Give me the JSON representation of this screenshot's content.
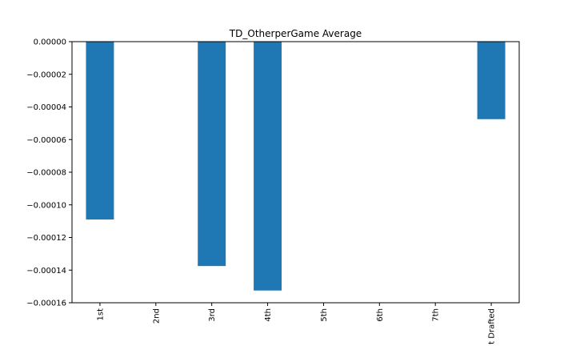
{
  "chart_data": {
    "type": "bar",
    "title": "TD_OtherperGame Average",
    "xlabel": "",
    "ylabel": "",
    "categories": [
      "1st",
      "2nd",
      "3rd",
      "4th",
      "5th",
      "6th",
      "7th",
      "Not Drafted"
    ],
    "visible_category_text": [
      "1st",
      "2nd",
      "3rd",
      "4th",
      "5th",
      "6th",
      "7th",
      "t Drafted"
    ],
    "values": [
      -0.000109,
      0,
      -0.0001375,
      -0.0001525,
      0,
      0,
      0,
      -4.75e-05
    ],
    "ylim": [
      -0.00016,
      0
    ],
    "yticks": [
      0,
      -2e-05,
      -4e-05,
      -6e-05,
      -8e-05,
      -0.0001,
      -0.00012,
      -0.00014,
      -0.00016
    ],
    "ytick_labels": [
      "0.00000",
      "−0.00002",
      "−0.00004",
      "−0.00006",
      "−0.00008",
      "−0.00010",
      "−0.00012",
      "−0.00014",
      "−0.00016"
    ],
    "grid": false,
    "bar_color": "#1f77b4"
  }
}
